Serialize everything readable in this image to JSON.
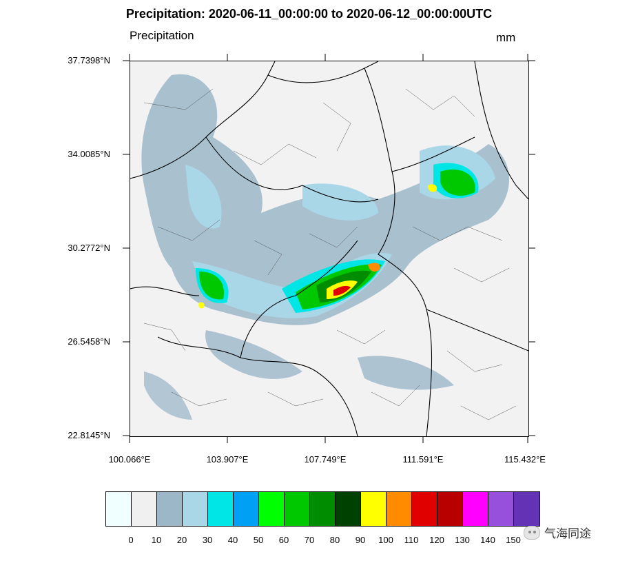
{
  "title": "Precipitation: 2020-06-11_00:00:00 to 2020-06-12_00:00:00UTC",
  "left_string": "Precipitation",
  "right_string": "mm",
  "lat_labels": [
    "37.7398°N",
    "34.0085°N",
    "30.2772°N",
    "26.5458°N",
    "22.8145°N"
  ],
  "lon_labels": [
    "100.066°E",
    "103.907°E",
    "107.749°E",
    "111.591°E",
    "115.432°E"
  ],
  "colorbar": {
    "colors": [
      "#f0ffff",
      "#f0f0f0",
      "#9cb7c8",
      "#a9d7e8",
      "#00e6e6",
      "#00a0f5",
      "#00ff00",
      "#00c800",
      "#008c00",
      "#004000",
      "#ffff00",
      "#ff8c00",
      "#e00000",
      "#b80000",
      "#ff00ff",
      "#9650dc",
      "#6432b4"
    ],
    "labels": [
      "0",
      "10",
      "20",
      "30",
      "40",
      "50",
      "60",
      "70",
      "80",
      "90",
      "100",
      "110",
      "120",
      "130",
      "140",
      "150"
    ]
  },
  "watermark": "气海同途"
}
